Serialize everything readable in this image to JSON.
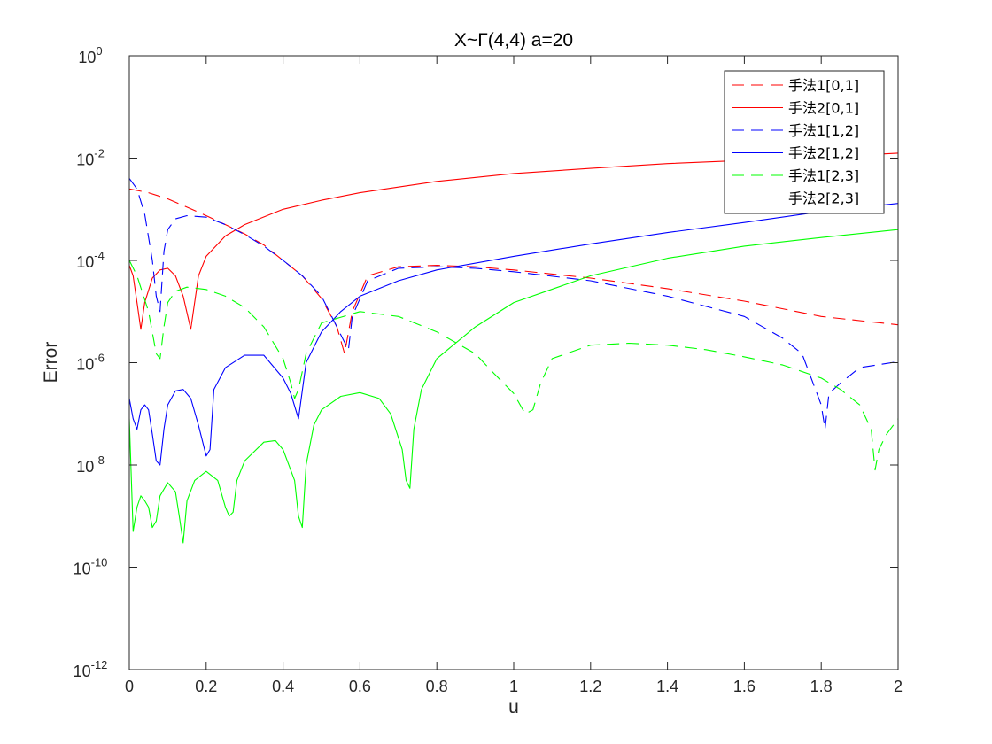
{
  "chart_data": {
    "type": "line",
    "title": "X~Γ(4,4) a=20",
    "xlabel": "u",
    "ylabel": "Error",
    "xlim": [
      0,
      2
    ],
    "ylim": [
      1e-12,
      1
    ],
    "yscale": "log",
    "grid": false,
    "legend_position": "top-right",
    "x_ticks": [
      "0",
      "0.2",
      "0.4",
      "0.6",
      "0.8",
      "1",
      "1.2",
      "1.4",
      "1.6",
      "1.8",
      "2"
    ],
    "y_ticks": [
      {
        "base": "10",
        "exp": "-12"
      },
      {
        "base": "10",
        "exp": "-10"
      },
      {
        "base": "10",
        "exp": "-8"
      },
      {
        "base": "10",
        "exp": "-6"
      },
      {
        "base": "10",
        "exp": "-4"
      },
      {
        "base": "10",
        "exp": "-2"
      },
      {
        "base": "10",
        "exp": "0"
      }
    ],
    "series": [
      {
        "name": "手法1[0,1]",
        "color": "#ff0000",
        "dash": "dashed",
        "x": [
          0,
          0.05,
          0.1,
          0.15,
          0.2,
          0.25,
          0.3,
          0.35,
          0.4,
          0.45,
          0.5,
          0.54,
          0.56,
          0.58,
          0.62,
          0.7,
          0.8,
          0.9,
          1.0,
          1.2,
          1.4,
          1.6,
          1.8,
          2.0
        ],
        "y": [
          0.0025,
          0.0021,
          0.0016,
          0.0011,
          0.00075,
          0.0005,
          0.00033,
          0.0002,
          0.0001,
          5e-05,
          1.8e-05,
          5e-06,
          1.5e-06,
          1e-05,
          5e-05,
          7.5e-05,
          8e-05,
          7.5e-05,
          6.5e-05,
          4.5e-05,
          2.8e-05,
          1.6e-05,
          8e-06,
          5.5e-06
        ]
      },
      {
        "name": "手法2[0,1]",
        "color": "#ff0000",
        "dash": "solid",
        "x": [
          0,
          0.01,
          0.02,
          0.03,
          0.04,
          0.06,
          0.08,
          0.1,
          0.12,
          0.14,
          0.16,
          0.18,
          0.2,
          0.25,
          0.3,
          0.4,
          0.5,
          0.6,
          0.8,
          1.0,
          1.2,
          1.4,
          1.6,
          1.8,
          2.0
        ],
        "y": [
          8e-05,
          5e-05,
          1.5e-05,
          4.5e-06,
          1.5e-05,
          4.5e-05,
          6.5e-05,
          7e-05,
          5e-05,
          2e-05,
          4.5e-06,
          5e-05,
          0.00012,
          0.0003,
          0.0005,
          0.001,
          0.0015,
          0.0021,
          0.0035,
          0.005,
          0.0063,
          0.0078,
          0.009,
          0.0105,
          0.0125
        ]
      },
      {
        "name": "手法1[1,2]",
        "color": "#0000ff",
        "dash": "dashed",
        "x": [
          0,
          0.02,
          0.04,
          0.06,
          0.07,
          0.08,
          0.09,
          0.1,
          0.12,
          0.15,
          0.2,
          0.25,
          0.3,
          0.35,
          0.4,
          0.45,
          0.5,
          0.54,
          0.56,
          0.57,
          0.58,
          0.62,
          0.7,
          0.8,
          0.9,
          1.0,
          1.2,
          1.4,
          1.6,
          1.7,
          1.75,
          1.8,
          1.81,
          1.82,
          1.85,
          1.9,
          2.0
        ],
        "y": [
          0.004,
          0.0025,
          0.0008,
          0.0001,
          2e-05,
          1e-05,
          0.00015,
          0.0004,
          0.00065,
          0.00075,
          0.0007,
          0.0005,
          0.00032,
          0.00019,
          0.0001,
          5e-05,
          2e-05,
          5e-06,
          2.5e-06,
          1.8e-06,
          8e-06,
          4e-05,
          7e-05,
          7.5e-05,
          7e-05,
          6e-05,
          4e-05,
          2e-05,
          8e-06,
          3e-06,
          1.5e-06,
          1.5e-07,
          5e-08,
          2.5e-07,
          4e-07,
          8e-07,
          1.05e-06
        ]
      },
      {
        "name": "手法2[1,2]",
        "color": "#0000ff",
        "dash": "solid",
        "x": [
          0,
          0.01,
          0.02,
          0.03,
          0.04,
          0.05,
          0.06,
          0.07,
          0.08,
          0.09,
          0.1,
          0.12,
          0.14,
          0.16,
          0.18,
          0.2,
          0.21,
          0.22,
          0.25,
          0.3,
          0.35,
          0.4,
          0.42,
          0.44,
          0.46,
          0.5,
          0.55,
          0.6,
          0.7,
          0.8,
          1.0,
          1.2,
          1.4,
          1.6,
          1.8,
          2.0
        ],
        "y": [
          2e-07,
          8e-08,
          5e-08,
          1.2e-07,
          1.5e-07,
          1.2e-07,
          4e-08,
          1.2e-08,
          1e-08,
          5e-08,
          1.5e-07,
          2.8e-07,
          3e-07,
          2e-07,
          6e-08,
          1.5e-08,
          2e-08,
          3e-07,
          8e-07,
          1.4e-06,
          1.4e-06,
          5e-07,
          2.5e-07,
          8e-08,
          1e-06,
          4e-06,
          1e-05,
          2e-05,
          4e-05,
          6.5e-05,
          0.00012,
          0.00021,
          0.00035,
          0.00055,
          0.0009,
          0.0013
        ]
      },
      {
        "name": "手法1[2,3]",
        "color": "#00ff00",
        "dash": "dashed",
        "x": [
          0,
          0.02,
          0.05,
          0.07,
          0.08,
          0.09,
          0.1,
          0.12,
          0.15,
          0.2,
          0.25,
          0.3,
          0.35,
          0.4,
          0.42,
          0.43,
          0.44,
          0.46,
          0.5,
          0.6,
          0.7,
          0.8,
          0.9,
          0.95,
          1.0,
          1.03,
          1.05,
          1.07,
          1.1,
          1.2,
          1.3,
          1.4,
          1.5,
          1.6,
          1.7,
          1.8,
          1.85,
          1.9,
          1.93,
          1.94,
          1.95,
          1.97,
          2.0
        ],
        "y": [
          0.0001,
          5e-05,
          1e-05,
          1.5e-06,
          1.2e-06,
          5e-06,
          1.5e-05,
          2.5e-05,
          3e-05,
          2.7e-05,
          2e-05,
          1.2e-05,
          5e-06,
          1.2e-06,
          4e-07,
          2e-07,
          3e-07,
          1.5e-06,
          6e-06,
          1e-05,
          8e-06,
          4e-06,
          1.5e-06,
          6e-07,
          2.5e-07,
          1e-07,
          1.2e-07,
          4e-07,
          1.2e-06,
          2.2e-06,
          2.4e-06,
          2.2e-06,
          1.8e-06,
          1.3e-06,
          9e-07,
          5e-07,
          3e-07,
          1.5e-07,
          5e-08,
          8e-09,
          2e-08,
          4e-08,
          8e-08
        ]
      },
      {
        "name": "手法2[2,3]",
        "color": "#00ff00",
        "dash": "solid",
        "x": [
          0,
          0.01,
          0.02,
          0.03,
          0.04,
          0.05,
          0.06,
          0.07,
          0.08,
          0.1,
          0.12,
          0.13,
          0.14,
          0.15,
          0.17,
          0.2,
          0.23,
          0.25,
          0.26,
          0.27,
          0.28,
          0.3,
          0.35,
          0.38,
          0.4,
          0.43,
          0.44,
          0.45,
          0.46,
          0.48,
          0.5,
          0.55,
          0.6,
          0.65,
          0.68,
          0.71,
          0.72,
          0.73,
          0.74,
          0.76,
          0.8,
          0.9,
          1.0,
          1.2,
          1.4,
          1.6,
          1.8,
          2.0
        ],
        "y": [
          8e-08,
          5e-10,
          1.5e-09,
          2.5e-09,
          2e-09,
          1.5e-09,
          6e-10,
          8e-10,
          2.5e-09,
          4.5e-09,
          3e-09,
          1e-09,
          3e-10,
          2e-09,
          5e-09,
          7.5e-09,
          5e-09,
          1.5e-09,
          1e-09,
          1.2e-09,
          5e-09,
          1.2e-08,
          2.8e-08,
          3e-08,
          2e-08,
          5e-09,
          1e-09,
          6e-10,
          1e-08,
          6e-08,
          1.2e-07,
          2.2e-07,
          2.6e-07,
          2e-07,
          1e-07,
          2e-08,
          5e-09,
          3.5e-09,
          5e-08,
          3e-07,
          1.2e-06,
          5e-06,
          1.5e-05,
          5e-05,
          0.00011,
          0.00019,
          0.00028,
          0.0004
        ]
      }
    ]
  }
}
